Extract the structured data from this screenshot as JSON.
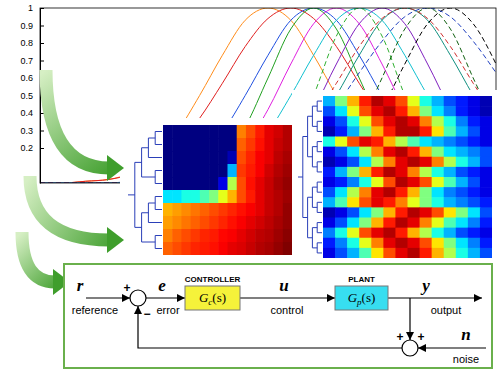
{
  "chart_data": [
    {
      "type": "line",
      "x": [
        0,
        5,
        10,
        15,
        20,
        25,
        30,
        35,
        40,
        45,
        50,
        55,
        60,
        65,
        70,
        75,
        80,
        85,
        90,
        95,
        100
      ],
      "xlim": [
        0,
        100
      ],
      "ylim": [
        0,
        1
      ],
      "yticks": [
        0.2,
        0.3,
        0.4,
        0.5,
        0.6,
        0.7,
        0.8,
        0.9,
        1
      ],
      "grid": false,
      "tick_labels": "y",
      "series": [
        {
          "color": "#ff8c1a",
          "line_style": "solid",
          "values": [
            0,
            0,
            0.01,
            0.02,
            0.06,
            0.15,
            0.29,
            0.5,
            0.73,
            0.93,
            1,
            0.93,
            0.73,
            0.5,
            0.29,
            0.15,
            0.06,
            0.02,
            0.01,
            0,
            0
          ]
        },
        {
          "color": "#e02020",
          "line_style": "solid",
          "values": [
            0,
            0,
            0.01,
            0.02,
            0.05,
            0.11,
            0.21,
            0.37,
            0.57,
            0.78,
            0.94,
            1,
            0.94,
            0.78,
            0.57,
            0.37,
            0.21,
            0.11,
            0.05,
            0.02,
            0.01
          ]
        },
        {
          "color": "#2050e0",
          "line_style": "solid",
          "values": [
            0,
            0,
            0,
            0,
            0.01,
            0.02,
            0.06,
            0.15,
            0.29,
            0.5,
            0.73,
            0.93,
            1,
            0.93,
            0.73,
            0.5,
            0.29,
            0.15,
            0.06,
            0.02,
            0.01
          ]
        },
        {
          "color": "#20a020",
          "line_style": "solid",
          "values": [
            0,
            0,
            0,
            0,
            0,
            0,
            0.01,
            0.04,
            0.13,
            0.32,
            0.6,
            0.88,
            1,
            0.88,
            0.6,
            0.32,
            0.13,
            0.04,
            0.01,
            0,
            0
          ]
        },
        {
          "color": "#e020e0",
          "line_style": "solid",
          "values": [
            0,
            0,
            0,
            0,
            0,
            0,
            0.01,
            0.03,
            0.09,
            0.21,
            0.42,
            0.68,
            0.91,
            1,
            0.91,
            0.68,
            0.42,
            0.21,
            0.09,
            0.03,
            0.01
          ]
        },
        {
          "color": "#10c0d0",
          "line_style": "solid",
          "values": [
            0,
            0,
            0,
            0,
            0,
            0,
            0.01,
            0.02,
            0.06,
            0.15,
            0.29,
            0.5,
            0.73,
            0.93,
            1,
            0.93,
            0.73,
            0.5,
            0.29,
            0.15,
            0.06
          ]
        },
        {
          "color": "#8020c0",
          "line_style": "solid",
          "values": [
            0,
            0,
            0,
            0,
            0,
            0,
            0,
            0,
            0.01,
            0.03,
            0.09,
            0.21,
            0.42,
            0.68,
            0.91,
            1,
            0.91,
            0.68,
            0.42,
            0.21,
            0.09
          ]
        },
        {
          "color": "#109080",
          "line_style": "solid",
          "values": [
            0,
            0,
            0,
            0,
            0,
            0,
            0,
            0,
            0.01,
            0.02,
            0.06,
            0.15,
            0.29,
            0.5,
            0.73,
            0.93,
            1,
            0.93,
            0.73,
            0.5,
            0.29
          ]
        },
        {
          "color": "#30b030",
          "line_style": "dashed",
          "values": [
            0,
            0,
            0,
            0,
            0,
            0,
            0,
            0,
            0,
            0.01,
            0.06,
            0.21,
            0.5,
            0.84,
            1,
            0.84,
            0.5,
            0.21,
            0.06,
            0.01,
            0
          ]
        },
        {
          "color": "#106010",
          "line_style": "dashed",
          "values": [
            0,
            0,
            0,
            0,
            0,
            0,
            0,
            0,
            0,
            0,
            0,
            0.01,
            0.04,
            0.13,
            0.32,
            0.6,
            0.88,
            1,
            0.88,
            0.6,
            0.32
          ]
        },
        {
          "color": "#000000",
          "line_style": "dashed",
          "values": [
            0,
            0,
            0,
            0,
            0,
            0,
            0,
            0,
            0,
            0,
            0,
            0.01,
            0.03,
            0.09,
            0.21,
            0.42,
            0.68,
            0.91,
            1,
            0.91,
            0.68
          ]
        },
        {
          "color": "#d03030",
          "line_style": "dashed",
          "values": [
            0,
            0,
            0,
            0,
            0,
            0,
            0,
            0.01,
            0.02,
            0.05,
            0.11,
            0.21,
            0.37,
            0.57,
            0.78,
            0.94,
            1,
            0.94,
            0.78,
            0.57,
            0.37
          ]
        },
        {
          "color": "#2040c0",
          "line_style": "dashed",
          "values": [
            0,
            0,
            0,
            0,
            0,
            0,
            0,
            0.01,
            0.02,
            0.04,
            0.08,
            0.16,
            0.27,
            0.44,
            0.63,
            0.81,
            0.95,
            1,
            0.95,
            0.81,
            0.63
          ]
        }
      ]
    },
    {
      "type": "heatmap",
      "tick_labels": false,
      "color_range": [
        0,
        1
      ],
      "cells": [
        [
          0,
          0,
          0,
          0,
          0,
          0,
          0,
          0,
          0.75,
          0.8,
          0.85,
          0.9,
          0.92,
          0.95
        ],
        [
          0,
          0,
          0,
          0,
          0,
          0,
          0,
          0,
          0.78,
          0.82,
          0.86,
          0.9,
          0.93,
          0.95
        ],
        [
          0,
          0,
          0,
          0,
          0,
          0,
          0,
          0.05,
          0.8,
          0.84,
          0.88,
          0.9,
          0.94,
          0.96
        ],
        [
          0,
          0,
          0,
          0,
          0,
          0,
          0,
          0.3,
          0.82,
          0.85,
          0.88,
          0.92,
          0.95,
          0.97
        ],
        [
          0,
          0,
          0,
          0,
          0,
          0,
          0.1,
          0.55,
          0.8,
          0.86,
          0.9,
          0.93,
          0.96,
          0.98
        ],
        [
          0.35,
          0.35,
          0.4,
          0.4,
          0.45,
          0.5,
          0.6,
          0.7,
          0.8,
          0.85,
          0.9,
          0.93,
          0.95,
          0.97
        ],
        [
          0.7,
          0.72,
          0.74,
          0.76,
          0.78,
          0.8,
          0.82,
          0.84,
          0.86,
          0.88,
          0.9,
          0.93,
          0.95,
          0.98
        ],
        [
          0.72,
          0.74,
          0.76,
          0.78,
          0.8,
          0.82,
          0.84,
          0.86,
          0.88,
          0.9,
          0.92,
          0.94,
          0.96,
          0.98
        ],
        [
          0.75,
          0.78,
          0.8,
          0.82,
          0.84,
          0.85,
          0.87,
          0.88,
          0.9,
          0.92,
          0.94,
          0.95,
          0.97,
          0.99
        ],
        [
          0.78,
          0.8,
          0.82,
          0.84,
          0.85,
          0.86,
          0.88,
          0.9,
          0.91,
          0.93,
          0.95,
          0.96,
          0.98,
          1
        ]
      ]
    },
    {
      "type": "heatmap",
      "tick_labels": false,
      "color_range": [
        0,
        1
      ],
      "cells": [
        [
          0.3,
          0.5,
          0.7,
          0.85,
          0.95,
          0.9,
          0.8,
          0.6,
          0.4,
          0.3,
          0.2,
          0.15,
          0.1,
          0.05
        ],
        [
          0.2,
          0.35,
          0.6,
          0.8,
          0.9,
          0.95,
          0.85,
          0.7,
          0.5,
          0.35,
          0.25,
          0.15,
          0.1,
          0.05
        ],
        [
          0.1,
          0.2,
          0.4,
          0.6,
          0.8,
          0.9,
          0.95,
          0.9,
          0.75,
          0.55,
          0.4,
          0.25,
          0.15,
          0.1
        ],
        [
          0.05,
          0.15,
          0.3,
          0.5,
          0.7,
          0.85,
          0.95,
          0.95,
          0.85,
          0.65,
          0.45,
          0.3,
          0.2,
          0.1
        ],
        [
          0.4,
          0.6,
          0.8,
          0.9,
          0.85,
          0.7,
          0.55,
          0.45,
          0.35,
          0.3,
          0.25,
          0.2,
          0.15,
          0.1
        ],
        [
          0.1,
          0.2,
          0.35,
          0.55,
          0.75,
          0.9,
          0.95,
          0.85,
          0.7,
          0.5,
          0.35,
          0.3,
          0.25,
          0.2
        ],
        [
          0.05,
          0.1,
          0.2,
          0.35,
          0.55,
          0.75,
          0.9,
          0.95,
          0.9,
          0.75,
          0.55,
          0.4,
          0.3,
          0.2
        ],
        [
          0.15,
          0.3,
          0.5,
          0.7,
          0.85,
          0.95,
          0.9,
          0.75,
          0.55,
          0.4,
          0.3,
          0.2,
          0.15,
          0.1
        ],
        [
          0.1,
          0.15,
          0.25,
          0.4,
          0.6,
          0.8,
          0.95,
          0.9,
          0.8,
          0.6,
          0.45,
          0.3,
          0.2,
          0.1
        ],
        [
          0.2,
          0.35,
          0.55,
          0.75,
          0.9,
          0.95,
          0.85,
          0.7,
          0.5,
          0.35,
          0.25,
          0.2,
          0.15,
          0.1
        ],
        [
          0.3,
          0.45,
          0.65,
          0.8,
          0.9,
          0.85,
          0.75,
          0.6,
          0.5,
          0.4,
          0.3,
          0.25,
          0.2,
          0.15
        ],
        [
          0.05,
          0.1,
          0.2,
          0.35,
          0.5,
          0.7,
          0.85,
          0.95,
          0.9,
          0.8,
          0.65,
          0.5,
          0.35,
          0.2
        ],
        [
          0.1,
          0.2,
          0.35,
          0.5,
          0.7,
          0.85,
          0.95,
          0.9,
          0.75,
          0.6,
          0.45,
          0.35,
          0.25,
          0.15
        ],
        [
          0.25,
          0.4,
          0.6,
          0.8,
          0.9,
          0.95,
          0.85,
          0.7,
          0.55,
          0.4,
          0.3,
          0.2,
          0.15,
          0.1
        ],
        [
          0.15,
          0.25,
          0.4,
          0.6,
          0.75,
          0.9,
          0.95,
          0.9,
          0.8,
          0.65,
          0.5,
          0.35,
          0.25,
          0.15
        ],
        [
          0.1,
          0.2,
          0.3,
          0.45,
          0.65,
          0.8,
          0.9,
          0.95,
          0.85,
          0.7,
          0.55,
          0.4,
          0.3,
          0.2
        ]
      ]
    }
  ],
  "diagram": {
    "signals": [
      {
        "symbol": "r",
        "label": "reference"
      },
      {
        "symbol": "e",
        "label": "error"
      },
      {
        "symbol": "u",
        "label": "control"
      },
      {
        "symbol": "y",
        "label": "output"
      },
      {
        "symbol": "n",
        "label": "noise"
      }
    ],
    "blocks": [
      {
        "title": "CONTROLLER",
        "function": "G",
        "subscript": "c",
        "argument": "(s)"
      },
      {
        "title": "PLANT",
        "function": "G",
        "subscript": "p",
        "argument": "(s)"
      }
    ],
    "junctions": [
      {
        "signs": [
          "+",
          "−"
        ]
      },
      {
        "signs": [
          "+",
          "+"
        ]
      }
    ]
  }
}
